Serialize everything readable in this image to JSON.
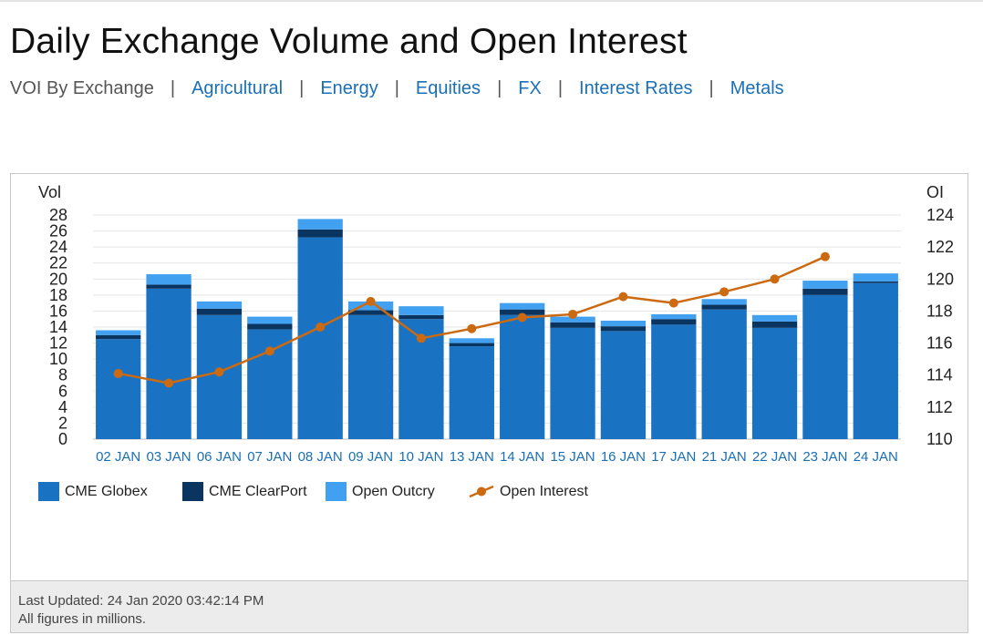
{
  "page": {
    "title": "Daily Exchange Volume and Open Interest"
  },
  "nav": {
    "current": "VOI By Exchange",
    "separator": "|",
    "links": [
      "Agricultural",
      "Energy",
      "Equities",
      "FX",
      "Interest Rates",
      "Metals"
    ]
  },
  "colors": {
    "globex": "#1a72c2",
    "clearport": "#0b3561",
    "outcry": "#42a0f0",
    "open_interest": "#cc6a12",
    "link": "#1a6fb5"
  },
  "chart_data": {
    "type": "bar",
    "stacked": true,
    "categories": [
      "02 JAN",
      "03 JAN",
      "06 JAN",
      "07 JAN",
      "08 JAN",
      "09 JAN",
      "10 JAN",
      "13 JAN",
      "14 JAN",
      "15 JAN",
      "16 JAN",
      "17 JAN",
      "21 JAN",
      "22 JAN",
      "23 JAN",
      "24 JAN"
    ],
    "y_left": {
      "label": "Vol",
      "min": 0,
      "max": 28,
      "ticks": [
        0,
        2,
        4,
        6,
        8,
        10,
        12,
        14,
        16,
        18,
        20,
        22,
        24,
        26,
        28
      ]
    },
    "y_right": {
      "label": "OI",
      "min": 110,
      "max": 124,
      "ticks": [
        110,
        112,
        114,
        116,
        118,
        120,
        122,
        124
      ]
    },
    "series": [
      {
        "name": "CME Globex",
        "type": "bar",
        "axis": "left",
        "values": [
          12.5,
          18.8,
          15.5,
          13.7,
          25.2,
          15.5,
          15.0,
          11.6,
          15.5,
          13.9,
          13.5,
          14.3,
          16.2,
          13.9,
          18.0,
          19.5
        ]
      },
      {
        "name": "CME ClearPort",
        "type": "bar",
        "axis": "left",
        "values": [
          0.5,
          0.5,
          0.8,
          0.7,
          1.0,
          0.6,
          0.5,
          0.4,
          0.7,
          0.7,
          0.6,
          0.7,
          0.6,
          0.8,
          0.8,
          0.2
        ]
      },
      {
        "name": "Open Outcry",
        "type": "bar",
        "axis": "left",
        "values": [
          0.6,
          1.3,
          0.9,
          0.9,
          1.3,
          1.1,
          1.1,
          0.6,
          0.8,
          0.7,
          0.7,
          0.6,
          0.7,
          0.8,
          1.0,
          1.0
        ]
      },
      {
        "name": "Open Interest",
        "type": "line",
        "axis": "right",
        "values": [
          114.1,
          113.5,
          114.2,
          115.5,
          117.0,
          118.6,
          116.3,
          116.9,
          117.6,
          117.8,
          118.9,
          118.5,
          119.2,
          120.0,
          121.4,
          null
        ]
      }
    ],
    "grid": true,
    "legend_position": "bottom-left"
  },
  "footer": {
    "last_updated": "Last Updated: 24 Jan 2020 03:42:14 PM",
    "note": "All figures in millions."
  }
}
